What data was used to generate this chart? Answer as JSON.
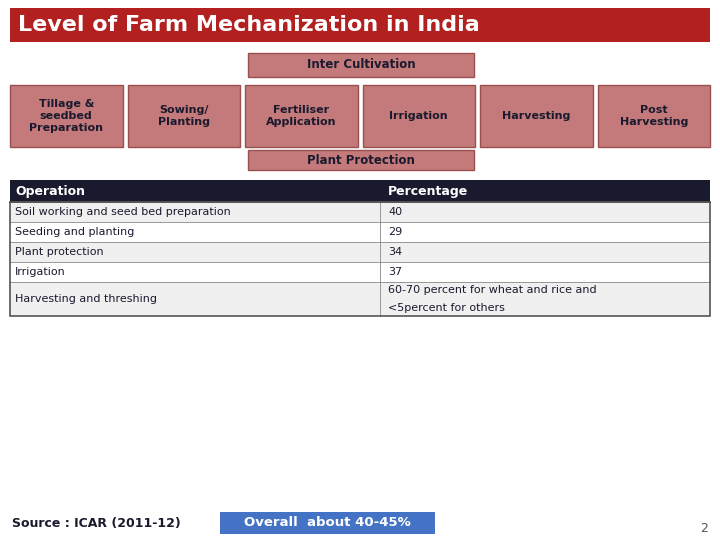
{
  "title": "Level of Farm Mechanization in India",
  "title_bg": "#b22020",
  "title_color": "#ffffff",
  "inter_cultivation_label": "Inter Cultivation",
  "plant_protection_label": "Plant Protection",
  "box_color": "#c47a7a",
  "box_border": "#9b5050",
  "boxes": [
    "Tillage &\nseedbed\nPreparation",
    "Sowing/\nPlanting",
    "Fertiliser\nApplication",
    "Irrigation",
    "Harvesting",
    "Post\nHarvesting"
  ],
  "table_header": [
    "Operation",
    "Percentage"
  ],
  "table_rows": [
    [
      "Soil working and seed bed preparation",
      "40"
    ],
    [
      "Seeding and planting",
      "29"
    ],
    [
      "Plant protection",
      "34"
    ],
    [
      "Irrigation",
      "37"
    ],
    [
      "Harvesting and threshing",
      "60-70 percent for wheat and rice and\n<5percent for others"
    ]
  ],
  "source_text": "Source : ICAR (2011-12)",
  "overall_text": "Overall  about 40-45%",
  "overall_bg": "#4472c4",
  "overall_text_color": "#ffffff",
  "page_number": "2",
  "bg_color": "#ffffff",
  "table_header_bg": "#1a1a2e",
  "table_header_color": "#ffffff"
}
